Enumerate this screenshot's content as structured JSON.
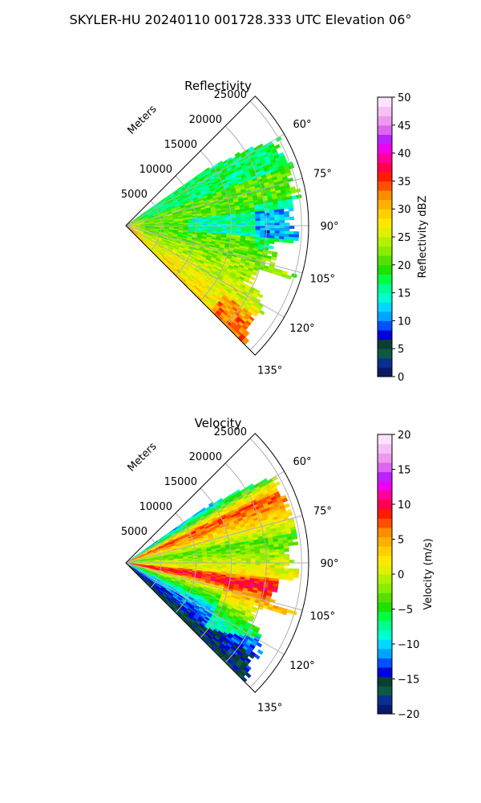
{
  "figure": {
    "suptitle": "SKYLER-HU  20240110  001728.333 UTC Elevation 06°"
  },
  "chart_data": [
    {
      "type": "heatmap",
      "title": "Reflectivity",
      "radial_label": "Meters",
      "r_ticks": [
        5000,
        10000,
        15000,
        20000,
        25000
      ],
      "r_tick_labels": [
        "5000",
        "10000",
        "15000",
        "20000",
        "25000"
      ],
      "rlim": [
        0,
        26000
      ],
      "theta_ticks": [
        60,
        75,
        90,
        105,
        120,
        135
      ],
      "theta_tick_labels": [
        "60°",
        "75°",
        "90°",
        "105°",
        "120°",
        "135°"
      ],
      "theta_range": [
        45,
        135
      ],
      "data_azimuth_range": [
        55,
        135
      ],
      "grid": true,
      "colorbar": {
        "label": "Reflectivity dBZ",
        "range": [
          0,
          50
        ],
        "ticks": [
          0,
          5,
          10,
          15,
          20,
          25,
          30,
          35,
          40,
          45,
          50
        ],
        "tick_labels": [
          "0",
          "5",
          "10",
          "15",
          "20",
          "25",
          "30",
          "35",
          "40",
          "45",
          "50"
        ],
        "colors": [
          "#0a1a6b",
          "#0b2f8f",
          "#0a5a44",
          "#0b3f2f",
          "#0000d8",
          "#0050ff",
          "#00a4ff",
          "#00d8ff",
          "#00ffd0",
          "#00ff90",
          "#00ff40",
          "#20e000",
          "#55e000",
          "#88ee00",
          "#b4f000",
          "#e0f000",
          "#ffe800",
          "#ffd000",
          "#ffb000",
          "#ff8c00",
          "#ff5000",
          "#ff1a00",
          "#ff0050",
          "#ff0099",
          "#ee00ee",
          "#bb22ff",
          "#dd66ee",
          "#ee99ee",
          "#f5c0f5",
          "#fce5fc"
        ]
      }
    },
    {
      "type": "heatmap",
      "title": "Velocity",
      "radial_label": "Meters",
      "r_ticks": [
        5000,
        10000,
        15000,
        20000,
        25000
      ],
      "r_tick_labels": [
        "5000",
        "10000",
        "15000",
        "20000",
        "25000"
      ],
      "rlim": [
        0,
        26000
      ],
      "theta_ticks": [
        60,
        75,
        90,
        105,
        120,
        135
      ],
      "theta_tick_labels": [
        "60°",
        "75°",
        "90°",
        "105°",
        "120°",
        "135°"
      ],
      "theta_range": [
        45,
        135
      ],
      "data_azimuth_range": [
        55,
        135
      ],
      "grid": true,
      "colorbar": {
        "label": "Velocity (m/s)",
        "range": [
          -20,
          20
        ],
        "ticks": [
          -20,
          -15,
          -10,
          -5,
          0,
          5,
          10,
          15,
          20
        ],
        "tick_labels": [
          "−20",
          "−15",
          "−10",
          "−5",
          "0",
          "5",
          "10",
          "15",
          "20"
        ],
        "colors": [
          "#0a1a6b",
          "#0b2f8f",
          "#0a5a44",
          "#0b3f2f",
          "#0000d8",
          "#0050ff",
          "#00a4ff",
          "#00d8ff",
          "#00ffd0",
          "#00ff90",
          "#00ff40",
          "#20e000",
          "#55e000",
          "#88ee00",
          "#b4f000",
          "#e0f000",
          "#ffe800",
          "#ffd000",
          "#ffb000",
          "#ff8c00",
          "#ff5000",
          "#ff1a00",
          "#ff0050",
          "#ff0099",
          "#ee00ee",
          "#bb22ff",
          "#dd66ee",
          "#ee99ee",
          "#f5c0f5",
          "#fce5fc"
        ]
      }
    }
  ]
}
